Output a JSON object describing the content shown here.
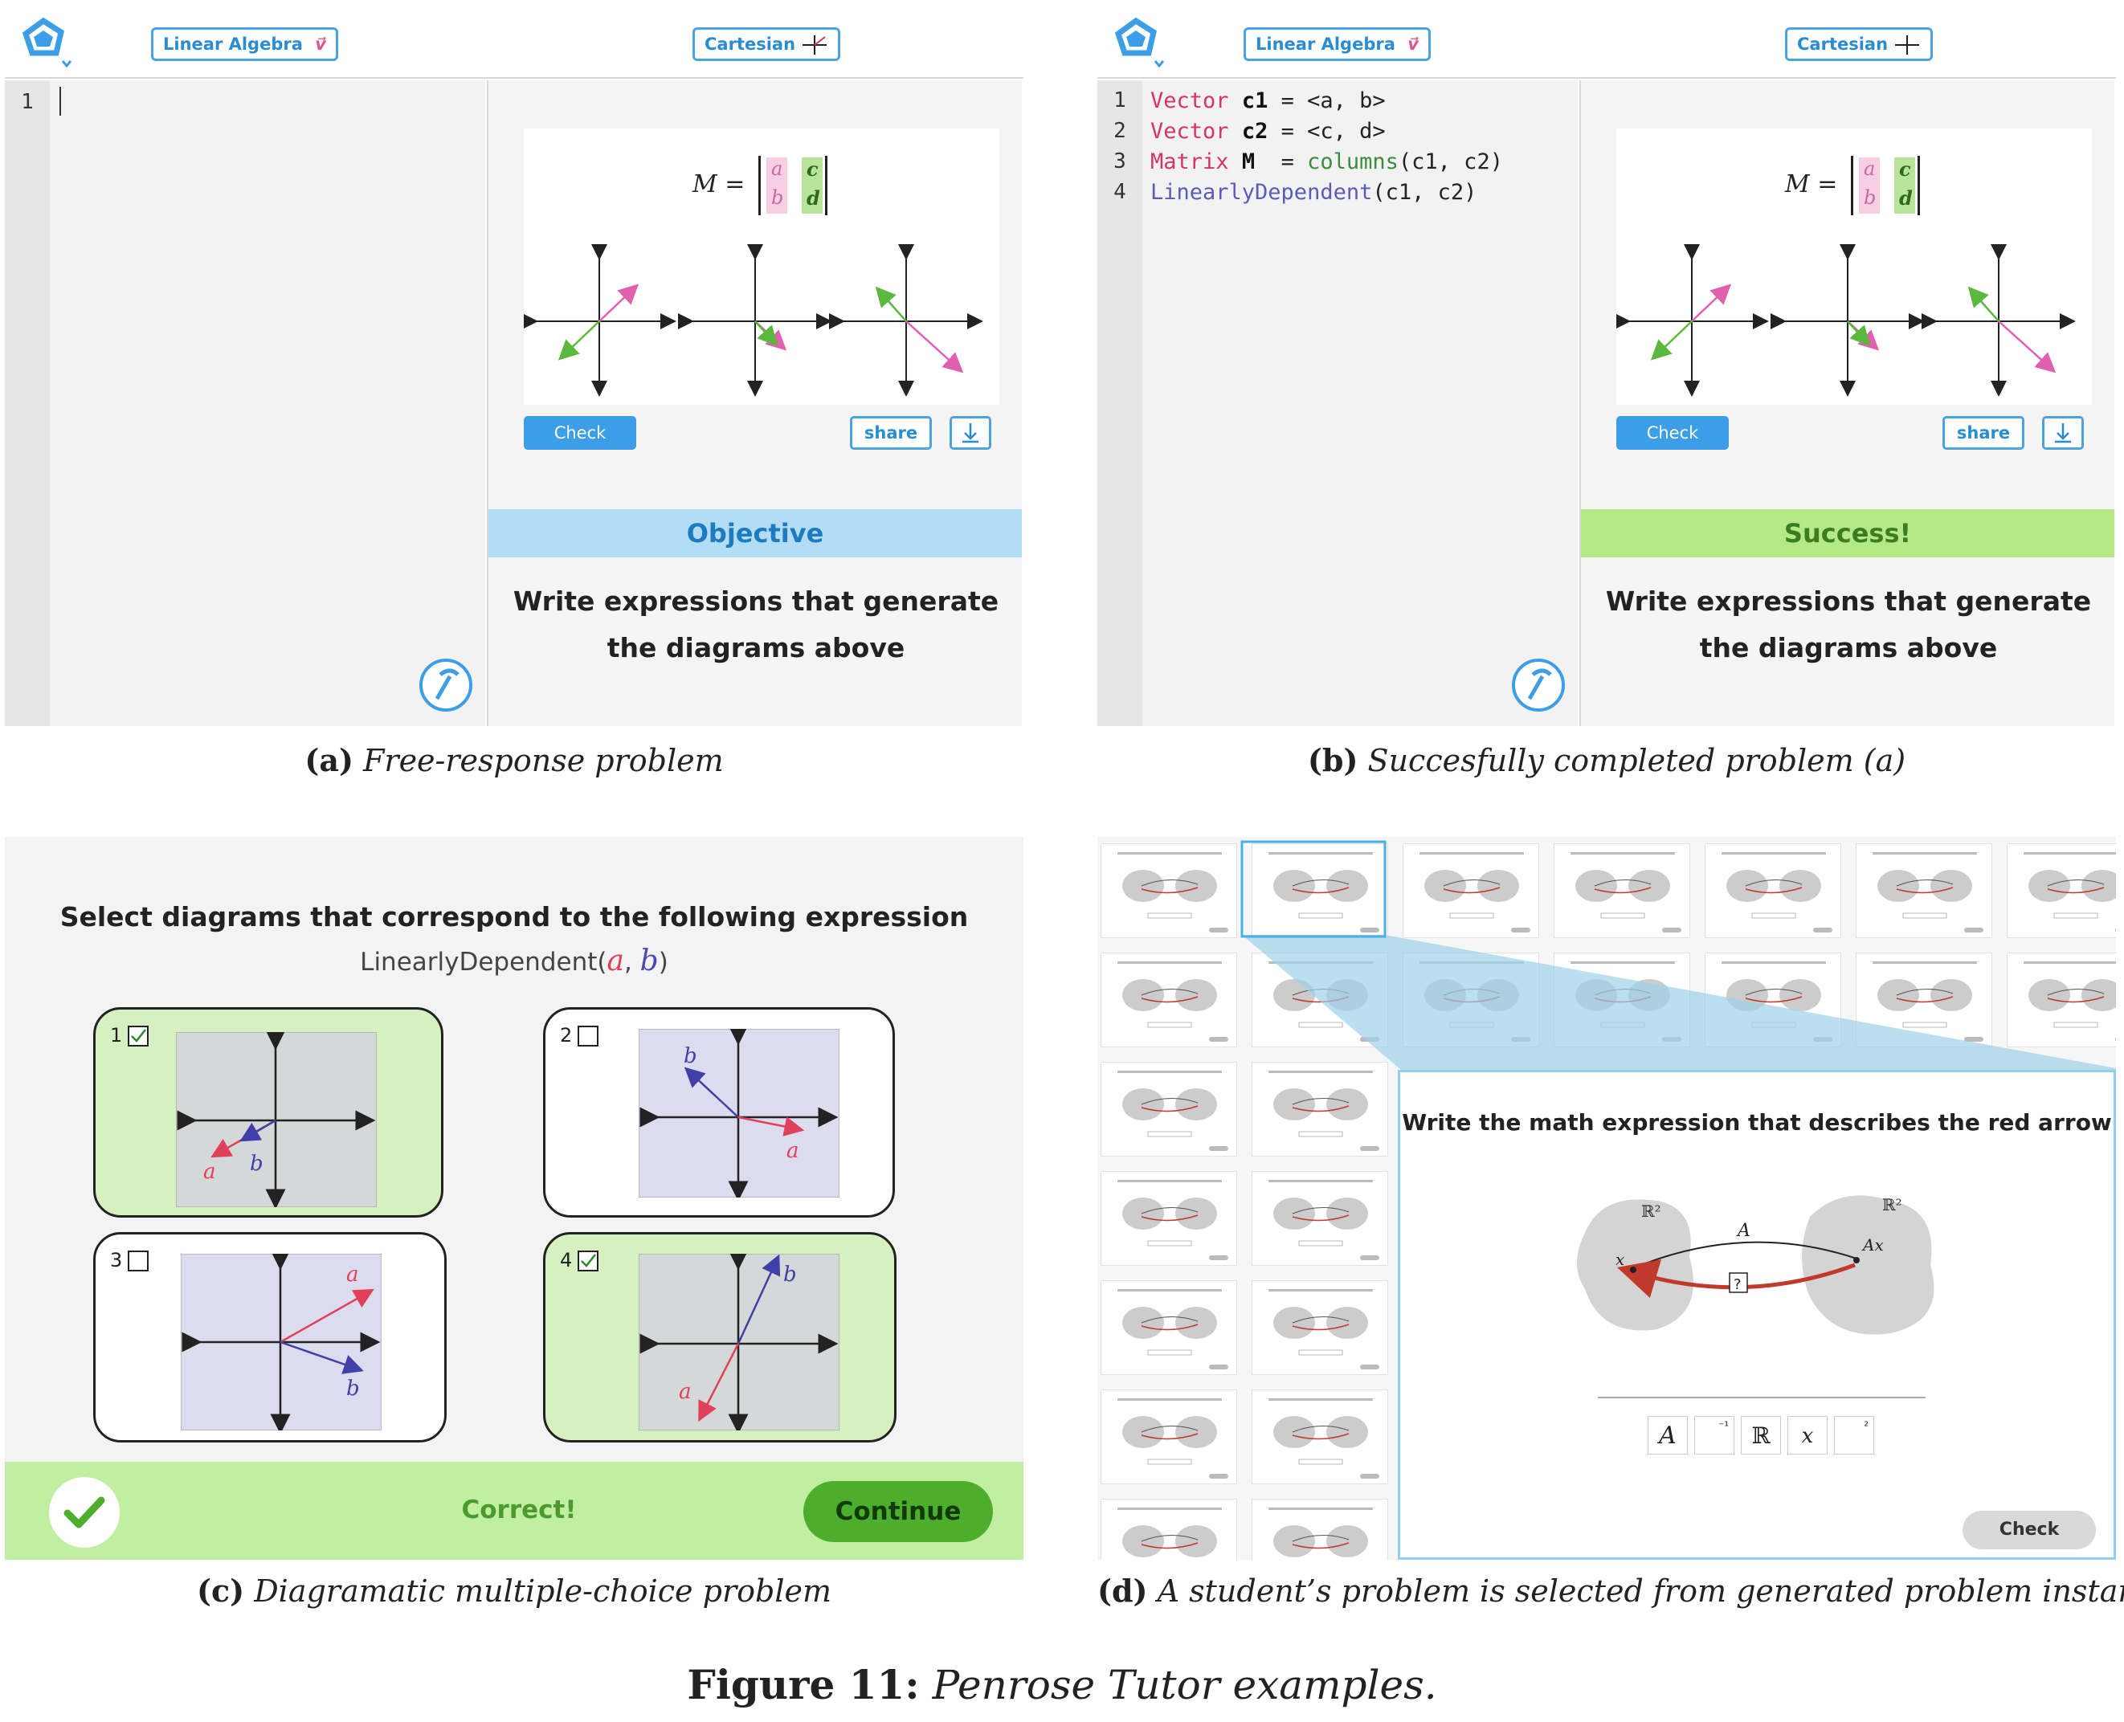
{
  "panel_a": {
    "subject_label": "Linear Algebra",
    "subject_icon": "vector-arrow-icon",
    "domain_label": "Cartesian",
    "domain_icon": "crosshair-icon",
    "line_number": "1",
    "matrix_label": "M =",
    "matrix_entries": [
      "a",
      "b",
      "c",
      "d"
    ],
    "check_label": "Check",
    "share_label": "share",
    "banner": "Objective",
    "prompt": "Write expressions that generate the diagrams above",
    "colors": {
      "banner_bg": "#b3dcf5",
      "banner_text": "#1f7bbf"
    }
  },
  "panel_b": {
    "subject_label": "Linear Algebra",
    "domain_label": "Cartesian",
    "code_lines": [
      {
        "n": "1",
        "kw": "Vector",
        "name": "c1",
        "rest": " = <a, b>"
      },
      {
        "n": "2",
        "kw": "Vector",
        "name": "c2",
        "rest": " = <c, d>"
      },
      {
        "n": "3",
        "kw": "Matrix",
        "name": "M",
        "fn": "columns",
        "args": "(c1, c2)"
      },
      {
        "n": "4",
        "fn2": "LinearlyDependent",
        "args": "(c1, c2)"
      }
    ],
    "matrix_label": "M =",
    "matrix_entries": [
      "a",
      "b",
      "c",
      "d"
    ],
    "check_label": "Check",
    "share_label": "share",
    "banner": "Success!",
    "prompt": "Write expressions that generate the diagrams above",
    "colors": {
      "banner_bg": "#b5e887",
      "banner_text": "#3c7d22"
    }
  },
  "panel_c": {
    "title": "Select diagrams that correspond to the following expression",
    "expr_prefix": "LinearlyDependent(",
    "expr_a": "a",
    "expr_sep": ",",
    "expr_b": "b",
    "expr_suffix": ")",
    "choices": [
      {
        "num": "1",
        "checked": true,
        "label_a": "a",
        "label_b": "b"
      },
      {
        "num": "2",
        "checked": false,
        "label_a": "a",
        "label_b": "b"
      },
      {
        "num": "3",
        "checked": false,
        "label_a": "a",
        "label_b": "b"
      },
      {
        "num": "4",
        "checked": true,
        "label_a": "a",
        "label_b": "b"
      }
    ],
    "feedback": "Correct!",
    "continue_label": "Continue",
    "colors": {
      "correct_bar": "#c2eea2",
      "continue_bg": "#4cae2c",
      "selected_card": "#d6f0c2"
    }
  },
  "panel_d": {
    "prompt": "Write the math expression that describes the red arrow",
    "set_label_left": "ℝ²",
    "set_label_right": "ℝ²",
    "arrow_label": "A",
    "point_x": "x",
    "point_ax": "Ax",
    "unknown": "?",
    "palette": [
      "A",
      "⁻¹",
      "ℝ",
      "x",
      "²"
    ],
    "check_label": "Check"
  },
  "captions": {
    "a_tag": "(a)",
    "a_text": "Free-response problem",
    "b_tag": "(b)",
    "b_text": "Succesfully completed problem (a)",
    "c_tag": "(c)",
    "c_text": "Diagramatic multiple-choice problem",
    "d_tag": "(d)",
    "d_text": "A student’s problem is selected from generated problem instances.",
    "figure_tag": "Figure 11:",
    "figure_text": "Penrose Tutor examples."
  }
}
